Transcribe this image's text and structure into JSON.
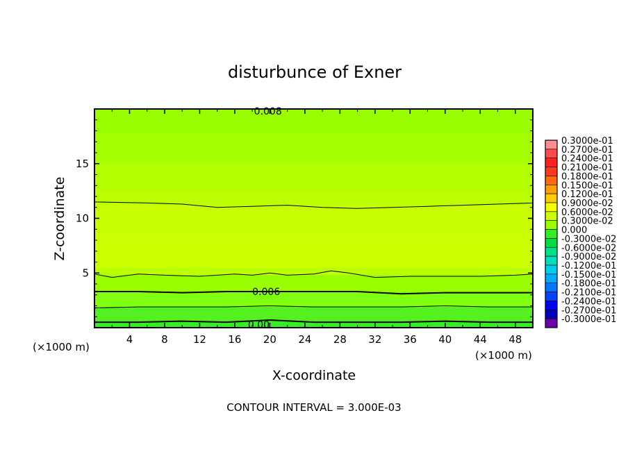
{
  "chart_data": {
    "type": "contour",
    "title": "disturbunce of Exner",
    "xlabel": "X-coordinate",
    "ylabel": "Z-coordinate",
    "x_unit": "(×1000 m)",
    "y_unit": "(×1000 m)",
    "xlim": [
      0,
      50
    ],
    "ylim": [
      0,
      20
    ],
    "xticks": [
      4,
      8,
      12,
      16,
      20,
      24,
      28,
      32,
      36,
      40,
      44,
      48
    ],
    "yticks": [
      5,
      10,
      15
    ],
    "contour_interval_text": "CONTOUR INTERVAL = 3.000E-03",
    "colorbar_levels": [
      {
        "label": "0.3000e-01",
        "color": "#ff8f8f"
      },
      {
        "label": "0.2700e-01",
        "color": "#ff4a4a"
      },
      {
        "label": "0.2400e-01",
        "color": "#ff2020"
      },
      {
        "label": "0.2100e-01",
        "color": "#ff3a1a"
      },
      {
        "label": "0.1800e-01",
        "color": "#ff6a10"
      },
      {
        "label": "0.1500e-01",
        "color": "#ff9f00"
      },
      {
        "label": "0.1200e-01",
        "color": "#ffcc00"
      },
      {
        "label": "0.9000e-02",
        "color": "#f2ff00"
      },
      {
        "label": "0.6000e-02",
        "color": "#ccff00"
      },
      {
        "label": "0.3000e-02",
        "color": "#99ff00"
      },
      {
        "label": "0.000",
        "color": "#33ee22"
      },
      {
        "label": "-0.3000e-02",
        "color": "#00dd44"
      },
      {
        "label": "-0.6000e-02",
        "color": "#00e088"
      },
      {
        "label": "-0.9000e-02",
        "color": "#00ddbb"
      },
      {
        "label": "-0.1200e-01",
        "color": "#00ccee"
      },
      {
        "label": "-0.1500e-01",
        "color": "#00aaff"
      },
      {
        "label": "-0.1800e-01",
        "color": "#0077ff"
      },
      {
        "label": "-0.2100e-01",
        "color": "#0044ff"
      },
      {
        "label": "-0.2400e-01",
        "color": "#0000ee"
      },
      {
        "label": "-0.2700e-01",
        "color": "#0000bb"
      },
      {
        "label": "-0.3000e-01",
        "color": "#6a00aa"
      }
    ],
    "filled_bands": [
      {
        "z_top": 20.0,
        "z_bottom": 17.8,
        "color": "#99ff00"
      },
      {
        "z_top": 17.8,
        "z_bottom": 15.0,
        "color": "#a6ff00"
      },
      {
        "z_top": 15.0,
        "z_bottom": 12.5,
        "color": "#b3ff00"
      },
      {
        "z_top": 12.5,
        "z_bottom": 11.2,
        "color": "#bdff00"
      },
      {
        "z_top": 11.2,
        "z_bottom": 8.3,
        "color": "#c8ff00"
      },
      {
        "z_top": 8.3,
        "z_bottom": 5.5,
        "color": "#ccff00"
      },
      {
        "z_top": 5.5,
        "z_bottom": 4.8,
        "color": "#bbff00"
      },
      {
        "z_top": 4.8,
        "z_bottom": 3.3,
        "color": "#99ff00"
      },
      {
        "z_top": 3.3,
        "z_bottom": 1.9,
        "color": "#80ff10"
      },
      {
        "z_top": 1.9,
        "z_bottom": 0.6,
        "color": "#55f020"
      },
      {
        "z_top": 0.6,
        "z_bottom": 0.0,
        "color": "#33ee22"
      }
    ],
    "contours": [
      {
        "x": [
          0,
          6,
          10,
          14,
          18,
          22,
          26,
          30,
          34,
          38,
          42,
          46,
          50
        ],
        "z": [
          11.5,
          11.4,
          11.3,
          11.0,
          11.1,
          11.2,
          11.0,
          10.9,
          11.0,
          11.1,
          11.2,
          11.3,
          11.4
        ],
        "bold": false
      },
      {
        "x": [
          0,
          2,
          5,
          8,
          12,
          16,
          18,
          20,
          22,
          25,
          27,
          29,
          32,
          36,
          40,
          44,
          48,
          50
        ],
        "z": [
          4.9,
          4.6,
          4.9,
          4.8,
          4.7,
          4.9,
          4.8,
          5.0,
          4.8,
          4.9,
          5.2,
          5.0,
          4.6,
          4.7,
          4.7,
          4.7,
          4.8,
          4.9
        ],
        "bold": false
      },
      {
        "x": [
          0,
          5,
          10,
          15,
          20,
          25,
          30,
          35,
          40,
          45,
          50
        ],
        "z": [
          3.3,
          3.3,
          3.2,
          3.3,
          3.3,
          3.3,
          3.3,
          3.1,
          3.2,
          3.2,
          3.2
        ],
        "bold": true
      },
      {
        "x": [
          0,
          5,
          10,
          15,
          20,
          25,
          30,
          35,
          40,
          45,
          50
        ],
        "z": [
          1.8,
          1.9,
          1.9,
          1.9,
          2.0,
          1.9,
          1.9,
          1.9,
          2.0,
          1.9,
          1.9
        ],
        "bold": false
      },
      {
        "x": [
          0,
          5,
          10,
          15,
          20,
          25,
          30,
          35,
          40,
          45,
          50
        ],
        "z": [
          0.5,
          0.5,
          0.6,
          0.5,
          0.7,
          0.5,
          0.5,
          0.5,
          0.6,
          0.5,
          0.5
        ],
        "bold": true
      }
    ],
    "contour_labels": [
      {
        "text": "0.008",
        "x": 18.2,
        "z": 19.8
      },
      {
        "text": "0.006",
        "x": 18.0,
        "z": 3.3
      },
      {
        "text": "0.00",
        "x": 17.5,
        "z": 0.3
      }
    ]
  }
}
